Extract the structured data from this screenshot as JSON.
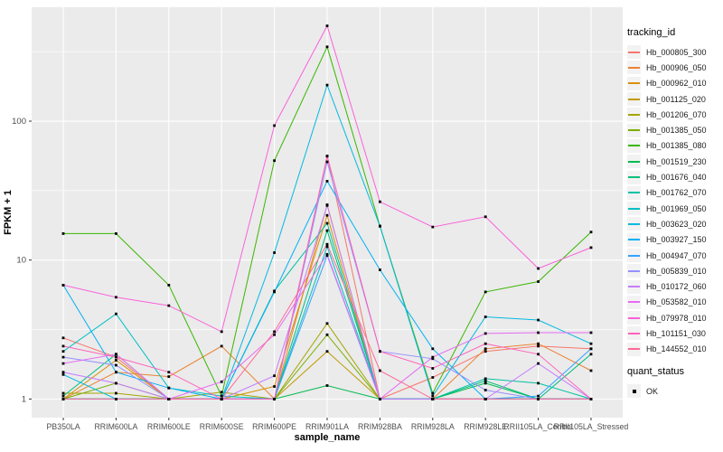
{
  "chart_data": {
    "type": "line",
    "title": "",
    "xlabel": "sample_name",
    "ylabel": "FPKM + 1",
    "x_categories": [
      "PB350LA",
      "RRIM600LA",
      "RRIM600LE",
      "RRIM600SE",
      "RRIM600PE",
      "RRIM901LA",
      "RRIM928BA",
      "RRIM928LA",
      "RRIM928LE",
      "RRII105LA_Control",
      "RRII105LA_Stressed"
    ],
    "y_scale": "log10",
    "y_ticks": [
      1,
      10,
      100
    ],
    "y_tick_labels": [
      "1",
      "10",
      "100"
    ],
    "y_minor_ticks": [
      3.162,
      31.62,
      316.2
    ],
    "ylim": [
      0.78,
      660
    ],
    "grid": "on",
    "legend_position": "right",
    "marker": "black-square",
    "series": [
      {
        "name": "Hb_000805_300",
        "color": "#F8766D",
        "values": [
          2.75,
          2.0,
          1.0,
          1.0,
          1.0,
          56,
          1.0,
          1.43,
          2.2,
          2.4,
          2.3
        ]
      },
      {
        "name": "Hb_000906_050",
        "color": "#EA8331",
        "values": [
          1.0,
          1.56,
          1.45,
          2.4,
          1.0,
          25,
          1.0,
          1.0,
          2.3,
          2.5,
          1.6
        ]
      },
      {
        "name": "Hb_000962_010",
        "color": "#D89000",
        "values": [
          1.0,
          1.9,
          1.0,
          1.0,
          1.23,
          21,
          1.0,
          1.0,
          1.0,
          1.0,
          1.0
        ]
      },
      {
        "name": "Hb_001125_020",
        "color": "#C09B00",
        "values": [
          1.0,
          1.0,
          1.0,
          1.0,
          1.0,
          2.2,
          1.0,
          1.0,
          1.0,
          1.0,
          1.0
        ]
      },
      {
        "name": "Hb_001206_070",
        "color": "#A3A500",
        "values": [
          1.1,
          1.1,
          1.0,
          1.12,
          1.0,
          3.5,
          1.0,
          1.0,
          1.0,
          1.0,
          1.0
        ]
      },
      {
        "name": "Hb_001385_050",
        "color": "#7CAE00",
        "values": [
          1.0,
          1.3,
          1.0,
          1.0,
          1.0,
          2.9,
          1.0,
          1.0,
          1.0,
          1.0,
          1.0
        ]
      },
      {
        "name": "Hb_001385_080",
        "color": "#39B600",
        "values": [
          15.5,
          15.5,
          6.6,
          1.05,
          52,
          343,
          17.6,
          1.1,
          5.9,
          7.0,
          15.9
        ]
      },
      {
        "name": "Hb_001519_230",
        "color": "#00BB4E",
        "values": [
          1.0,
          1.0,
          1.0,
          1.0,
          1.0,
          1.25,
          1.0,
          1.0,
          1.3,
          1.0,
          1.0
        ]
      },
      {
        "name": "Hb_001676_040",
        "color": "#00BF7D",
        "values": [
          1.05,
          2.1,
          1.0,
          1.0,
          1.0,
          16.3,
          1.0,
          1.0,
          1.35,
          1.0,
          2.1
        ]
      },
      {
        "name": "Hb_001762_070",
        "color": "#00C1A3",
        "values": [
          1.0,
          1.0,
          1.0,
          1.0,
          6.0,
          18.4,
          1.0,
          1.0,
          1.4,
          1.3,
          1.0
        ]
      },
      {
        "name": "Hb_001969_050",
        "color": "#00BFC4",
        "values": [
          2.2,
          4.1,
          1.2,
          1.05,
          1.0,
          12.5,
          1.0,
          1.0,
          1.0,
          1.0,
          1.0
        ]
      },
      {
        "name": "Hb_003623_020",
        "color": "#00BAE0",
        "values": [
          1.5,
          1.0,
          1.0,
          1.0,
          11.3,
          182,
          17.5,
          1.05,
          3.9,
          3.7,
          2.5
        ]
      },
      {
        "name": "Hb_003927_150",
        "color": "#00B0F6",
        "values": [
          6.6,
          1.56,
          1.2,
          1.0,
          5.9,
          37,
          8.5,
          2.3,
          1.0,
          1.0,
          1.0
        ]
      },
      {
        "name": "Hb_004947_070",
        "color": "#35A2FF",
        "values": [
          1.0,
          1.0,
          1.0,
          1.0,
          1.0,
          10.8,
          1.0,
          1.0,
          1.0,
          1.05,
          2.3
        ]
      },
      {
        "name": "Hb_005839_010",
        "color": "#9590FF",
        "values": [
          2.0,
          1.75,
          1.0,
          1.0,
          1.0,
          51,
          2.2,
          1.95,
          1.16,
          1.0,
          1.0
        ]
      },
      {
        "name": "Hb_010172_060",
        "color": "#C77CFF",
        "values": [
          1.56,
          1.3,
          1.0,
          1.0,
          1.47,
          24.7,
          1.0,
          1.0,
          1.0,
          1.8,
          1.0
        ]
      },
      {
        "name": "Hb_053582_010",
        "color": "#E76BF3",
        "values": [
          1.8,
          2.1,
          1.0,
          1.33,
          2.9,
          11.0,
          1.0,
          2.0,
          2.96,
          3.0,
          3.0
        ]
      },
      {
        "name": "Hb_079978_010",
        "color": "#FA62DB",
        "values": [
          6.6,
          5.4,
          4.7,
          3.05,
          93,
          485,
          26.3,
          17.3,
          20.5,
          8.7,
          12.3
        ]
      },
      {
        "name": "Hb_101151_030",
        "color": "#FF62BC",
        "values": [
          2.4,
          2.0,
          1.56,
          1.0,
          1.0,
          56,
          2.2,
          1.66,
          2.5,
          2.1,
          1.0
        ]
      },
      {
        "name": "Hb_144552_010",
        "color": "#FF6A98",
        "values": [
          1.0,
          1.0,
          1.0,
          1.0,
          3.05,
          13,
          1.6,
          1.0,
          1.0,
          1.0,
          1.0
        ]
      }
    ]
  },
  "legend": {
    "tracking_title": "tracking_id",
    "quant_title": "quant_status",
    "quant_items": [
      {
        "label": "OK"
      }
    ]
  },
  "colors": {
    "page_bg": "#FFFFFF",
    "panel_bg": "#EBEBEB",
    "grid": "#FFFFFF",
    "tick": "#333333",
    "axis_text": "#4D4D4D",
    "axis_title": "#000000",
    "key_bg": "#F2F2F2",
    "marker": "#000000"
  }
}
